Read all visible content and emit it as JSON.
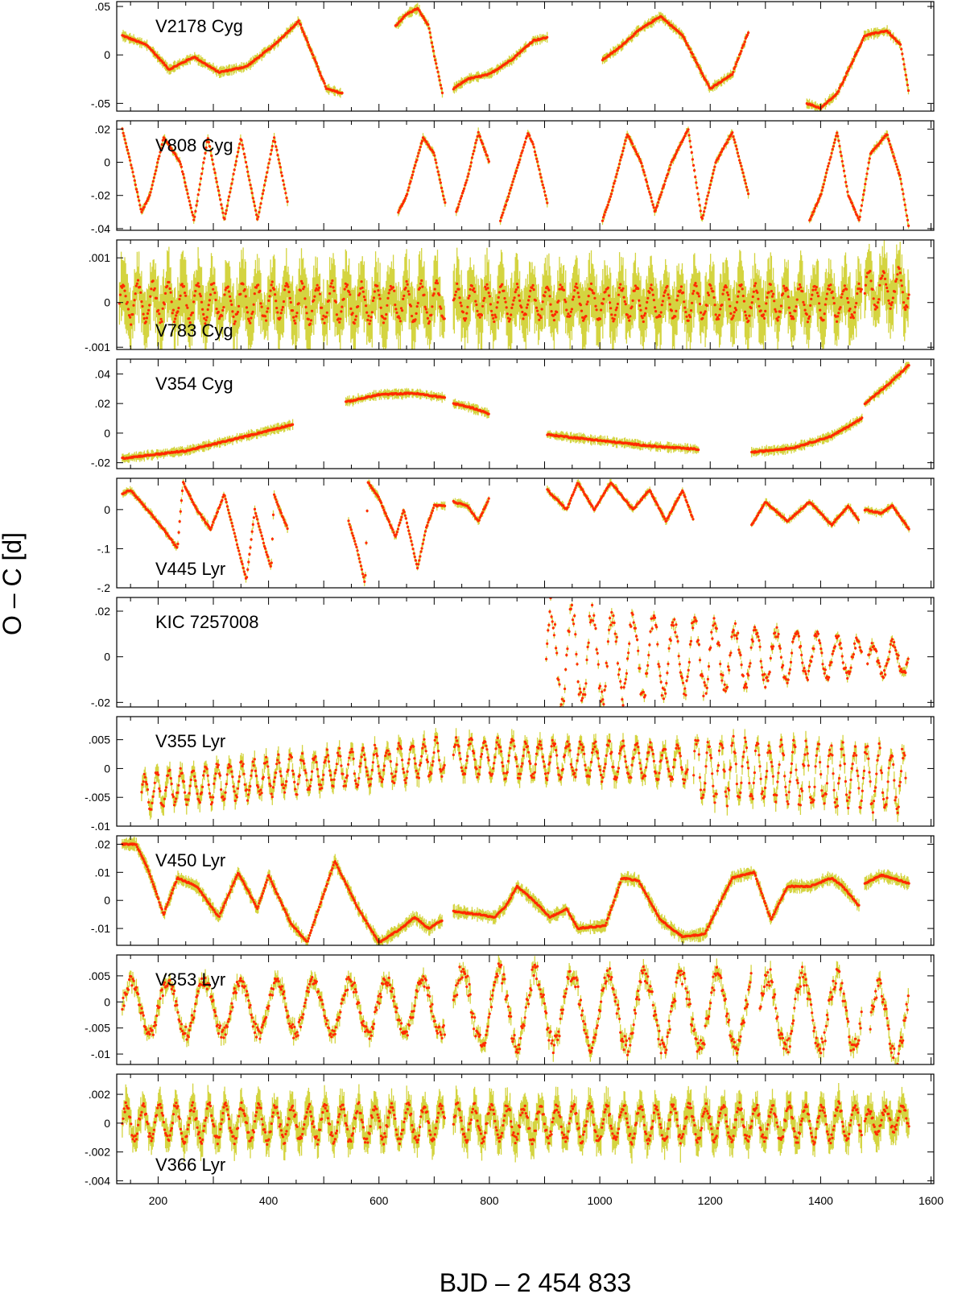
{
  "chart_data": {
    "type": "scatter",
    "ylabel": "O – C [d]",
    "xlabel": "BJD – 2 454 833",
    "xlim": [
      125,
      1605
    ],
    "xticks": [
      "200",
      "400",
      "600",
      "800",
      "1000",
      "1200",
      "1400",
      "1600"
    ],
    "xtick_values": [
      200,
      400,
      600,
      800,
      1000,
      1200,
      1400,
      1600
    ],
    "colors": {
      "points": "#ff2a00",
      "errorbars": "#d4d440",
      "axes": "#000000"
    },
    "panels": [
      {
        "name": "V2178 Cyg",
        "ylim": [
          -0.058,
          0.055
        ],
        "ytick_values": [
          -0.05,
          0,
          0.05
        ],
        "ytick_labels": [
          "-.05",
          "0",
          ".05"
        ],
        "label_pos": "upper-left",
        "err": 0.004,
        "segments": [
          {
            "x": [
              135,
              180,
              220,
              265,
              310,
              360,
              410,
              455,
              480,
              505,
              535
            ],
            "y": [
              0.02,
              0.01,
              -0.015,
              -0.002,
              -0.018,
              -0.012,
              0.01,
              0.035,
              0.0,
              -0.035,
              -0.04
            ]
          },
          {
            "x": [
              630,
              650,
              670,
              690,
              700,
              715
            ],
            "y": [
              0.03,
              0.042,
              0.048,
              0.03,
              0.0,
              -0.04
            ]
          },
          {
            "x": [
              735,
              760,
              800,
              840,
              880,
              905
            ],
            "y": [
              -0.035,
              -0.025,
              -0.02,
              -0.005,
              0.015,
              0.018
            ]
          },
          {
            "x": [
              1005,
              1030,
              1070,
              1110,
              1150,
              1200,
              1240,
              1270
            ],
            "y": [
              -0.005,
              0.005,
              0.025,
              0.04,
              0.02,
              -0.035,
              -0.02,
              0.025
            ]
          },
          {
            "x": [
              1375,
              1400,
              1430,
              1480,
              1520,
              1545,
              1560
            ],
            "y": [
              -0.05,
              -0.055,
              -0.04,
              0.02,
              0.025,
              0.01,
              -0.04
            ]
          }
        ]
      },
      {
        "name": "V808 Cyg",
        "ylim": [
          -0.041,
          0.025
        ],
        "ytick_values": [
          -0.04,
          -0.02,
          0,
          0.02
        ],
        "ytick_labels": [
          "-.04",
          "-.02",
          "0",
          ".02"
        ],
        "label_pos": "upper-left",
        "err": 0.002,
        "segments": [
          {
            "x": [
              135,
              150,
              170,
              185,
              210,
              240,
              265,
              290,
              320,
              350,
              380,
              410,
              435
            ],
            "y": [
              0.02,
              0.0,
              -0.03,
              -0.02,
              0.015,
              0.0,
              -0.035,
              0.015,
              -0.035,
              0.015,
              -0.035,
              0.015,
              -0.025
            ]
          },
          {
            "x": [
              635,
              650,
              680,
              700,
              720
            ],
            "y": [
              -0.03,
              -0.02,
              0.015,
              0.005,
              -0.025
            ]
          },
          {
            "x": [
              740,
              760,
              780,
              800
            ],
            "y": [
              -0.03,
              -0.01,
              0.018,
              0.0
            ]
          },
          {
            "x": [
              820,
              835,
              870,
              880,
              905
            ],
            "y": [
              -0.035,
              -0.02,
              0.018,
              0.01,
              -0.025
            ]
          },
          {
            "x": [
              1005,
              1020,
              1050,
              1075,
              1100,
              1130,
              1160,
              1185,
              1210,
              1240,
              1270
            ],
            "y": [
              -0.035,
              -0.02,
              0.017,
              0.0,
              -0.03,
              0.0,
              0.02,
              -0.035,
              0.0,
              0.018,
              -0.02
            ]
          },
          {
            "x": [
              1380,
              1400,
              1430,
              1450,
              1470,
              1490,
              1520,
              1545,
              1560
            ],
            "y": [
              -0.035,
              -0.02,
              0.018,
              -0.02,
              -0.035,
              0.005,
              0.017,
              -0.01,
              -0.04
            ]
          }
        ]
      },
      {
        "name": "V783 Cyg",
        "ylim": [
          -0.00105,
          0.0014
        ],
        "ytick_values": [
          -0.001,
          0,
          0.001
        ],
        "ytick_labels": [
          "-.001",
          "0",
          ".001"
        ],
        "label_pos": "lower-left",
        "err": 0.00055,
        "segments": [
          {
            "x": [
              130,
              720
            ],
            "y": [
              0.0,
              0.0
            ],
            "osc": {
              "period": 27,
              "amp": 0.0004
            }
          },
          {
            "x": [
              735,
              1475
            ],
            "y": [
              0.0,
              0.0
            ],
            "osc": {
              "period": 27,
              "amp": 0.00035
            }
          },
          {
            "x": [
              1480,
              1560
            ],
            "y": [
              0.0003,
              0.0003
            ],
            "osc": {
              "period": 27,
              "amp": 0.0004
            }
          }
        ]
      },
      {
        "name": "V354 Cyg",
        "ylim": [
          -0.024,
          0.05
        ],
        "ytick_values": [
          -0.02,
          0,
          0.02,
          0.04
        ],
        "ytick_labels": [
          "-.02",
          "0",
          ".02",
          ".04"
        ],
        "label_pos": "upper-left",
        "err": 0.0025,
        "segments": [
          {
            "x": [
              135,
              250,
              350,
              445
            ],
            "y": [
              -0.017,
              -0.012,
              -0.003,
              0.006
            ]
          },
          {
            "x": [
              540,
              600,
              660,
              720
            ],
            "y": [
              0.021,
              0.026,
              0.027,
              0.024
            ]
          },
          {
            "x": [
              735,
              770,
              800
            ],
            "y": [
              0.02,
              0.017,
              0.013
            ]
          },
          {
            "x": [
              905,
              1000,
              1100,
              1180
            ],
            "y": [
              -0.001,
              -0.005,
              -0.009,
              -0.011
            ]
          },
          {
            "x": [
              1275,
              1350,
              1420,
              1475
            ],
            "y": [
              -0.013,
              -0.01,
              -0.002,
              0.01
            ]
          },
          {
            "x": [
              1480,
              1520,
              1560
            ],
            "y": [
              0.02,
              0.032,
              0.046
            ]
          }
        ]
      },
      {
        "name": "V445 Lyr",
        "ylim": [
          -0.2,
          0.08
        ],
        "ytick_values": [
          -0.2,
          -0.1,
          0
        ],
        "ytick_labels": [
          "-.2",
          "-.1",
          "0"
        ],
        "label_pos": "lower-left",
        "err": 0.008,
        "segments": [
          {
            "x": [
              135,
              150,
              180,
              210,
              235,
              245,
              270,
              295,
              320,
              345,
              360,
              375,
              392,
              405,
              410,
              420,
              435
            ],
            "y": [
              0.04,
              0.05,
              0.0,
              -0.05,
              -0.1,
              0.07,
              0.0,
              -0.05,
              0.04,
              -0.1,
              -0.18,
              0.0,
              -0.09,
              -0.15,
              0.04,
              0.0,
              -0.05
            ]
          },
          {
            "x": [
              545,
              560,
              575,
              580,
              600,
              630,
              645,
              670,
              685,
              700,
              720
            ],
            "y": [
              -0.03,
              -0.1,
              -0.19,
              0.07,
              0.03,
              -0.07,
              0.0,
              -0.15,
              -0.05,
              0.01,
              0.01
            ]
          },
          {
            "x": [
              735,
              760,
              780,
              800
            ],
            "y": [
              0.02,
              0.01,
              -0.03,
              0.03
            ]
          },
          {
            "x": [
              905,
              940,
              960,
              990,
              1020,
              1060,
              1090,
              1120,
              1150,
              1170
            ],
            "y": [
              0.05,
              0.0,
              0.07,
              0.0,
              0.07,
              0.0,
              0.05,
              -0.03,
              0.05,
              -0.03
            ]
          },
          {
            "x": [
              1275,
              1300,
              1340,
              1380,
              1420,
              1450,
              1470
            ],
            "y": [
              -0.04,
              0.02,
              -0.03,
              0.02,
              -0.04,
              0.01,
              -0.03
            ]
          },
          {
            "x": [
              1480,
              1510,
              1530,
              1560
            ],
            "y": [
              0.0,
              -0.01,
              0.01,
              -0.05
            ]
          }
        ]
      },
      {
        "name": "KIC 7257008",
        "ylim": [
          -0.022,
          0.026
        ],
        "ytick_values": [
          -0.02,
          0,
          0.02
        ],
        "ytick_labels": [
          "-.02",
          "0",
          ".02"
        ],
        "label_pos": "upper-left",
        "err": 0.0015,
        "segments": [
          {
            "x": [
              903,
              1475
            ],
            "y": [
              0.0,
              0.0
            ],
            "osc": {
              "period": 37,
              "amp": 0.022,
              "decay_to": 0.007
            }
          },
          {
            "x": [
              1485,
              1560
            ],
            "y": [
              -0.002,
              0.0
            ],
            "osc": {
              "period": 37,
              "amp": 0.007
            }
          }
        ]
      },
      {
        "name": "V355 Lyr",
        "ylim": [
          -0.01,
          0.009
        ],
        "ytick_values": [
          -0.01,
          -0.005,
          0,
          0.005
        ],
        "ytick_labels": [
          "-.01",
          "-.005",
          "0",
          ".005"
        ],
        "label_pos": "upper-left",
        "err": 0.0012,
        "segments": [
          {
            "x": [
              170,
              720
            ],
            "y": [
              -0.004,
              0.002
            ],
            "osc": {
              "period": 22,
              "amp": 0.003
            }
          },
          {
            "x": [
              735,
              1160
            ],
            "y": [
              0.002,
              0.001
            ],
            "osc": {
              "period": 25,
              "amp": 0.003
            }
          },
          {
            "x": [
              1170,
              1555
            ],
            "y": [
              0.0,
              -0.002
            ],
            "osc": {
              "period": 22,
              "amp": 0.005
            }
          }
        ]
      },
      {
        "name": "V450 Lyr",
        "ylim": [
          -0.016,
          0.023
        ],
        "ytick_values": [
          -0.01,
          0,
          0.01,
          0.02
        ],
        "ytick_labels": [
          "-.01",
          "0",
          ".01",
          ".02"
        ],
        "label_pos": "upper-left",
        "err": 0.0018,
        "segments": [
          {
            "x": [
              135,
              160,
              180,
              210,
              235,
              270,
              310,
              345,
              380,
              400,
              440,
              470,
              520,
              560,
              600,
              640,
              665,
              690,
              715
            ],
            "y": [
              0.02,
              0.02,
              0.012,
              -0.005,
              0.008,
              0.005,
              -0.006,
              0.01,
              -0.003,
              0.009,
              -0.008,
              -0.015,
              0.014,
              -0.002,
              -0.015,
              -0.01,
              -0.006,
              -0.01,
              -0.007
            ]
          },
          {
            "x": [
              735,
              780,
              810,
              830,
              850,
              880,
              910,
              940,
              960,
              1010,
              1040,
              1070,
              1110,
              1150,
              1190,
              1240,
              1280,
              1310,
              1340,
              1380,
              1420,
              1440,
              1470
            ],
            "y": [
              -0.004,
              -0.005,
              -0.006,
              -0.002,
              0.005,
              0.0,
              -0.006,
              -0.003,
              -0.01,
              -0.009,
              0.008,
              0.007,
              -0.007,
              -0.013,
              -0.012,
              0.008,
              0.01,
              -0.007,
              0.005,
              0.005,
              0.008,
              0.005,
              -0.002
            ]
          },
          {
            "x": [
              1480,
              1510,
              1530,
              1560
            ],
            "y": [
              0.006,
              0.009,
              0.008,
              0.006
            ]
          }
        ]
      },
      {
        "name": "V353 Lyr",
        "ylim": [
          -0.012,
          0.009
        ],
        "ytick_values": [
          -0.01,
          -0.005,
          0,
          0.005
        ],
        "ytick_labels": [
          "-.01",
          "-.005",
          "0",
          ".005"
        ],
        "label_pos": "upper-left",
        "err": 0.0012,
        "segments": [
          {
            "x": [
              135,
              720
            ],
            "y": [
              -0.001,
              -0.001
            ],
            "osc": {
              "period": 66,
              "amp": 0.005
            }
          },
          {
            "x": [
              735,
              1275
            ],
            "y": [
              -0.001,
              -0.002
            ],
            "osc": {
              "period": 66,
              "amp": 0.007
            }
          },
          {
            "x": [
              1290,
              1475
            ],
            "y": [
              -0.002,
              -0.002
            ],
            "osc": {
              "period": 62,
              "amp": 0.007
            }
          },
          {
            "x": [
              1490,
              1560
            ],
            "y": [
              -0.004,
              -0.004
            ],
            "osc": {
              "period": 62,
              "amp": 0.007
            }
          }
        ]
      },
      {
        "name": "V366 Lyr",
        "ylim": [
          -0.0042,
          0.0034
        ],
        "ytick_values": [
          -0.004,
          -0.002,
          0,
          0.002
        ],
        "ytick_labels": [
          "-.004",
          "-.002",
          "0",
          ".002"
        ],
        "label_pos": "lower-left",
        "err": 0.0009,
        "segments": [
          {
            "x": [
              135,
              720
            ],
            "y": [
              0.0,
              0.0
            ],
            "osc": {
              "period": 30,
              "amp": 0.0012
            }
          },
          {
            "x": [
              735,
              1475
            ],
            "y": [
              0.0,
              0.0
            ],
            "osc": {
              "period": 30,
              "amp": 0.0012
            }
          },
          {
            "x": [
              1480,
              1560
            ],
            "y": [
              0.0,
              0.0005
            ],
            "osc": {
              "period": 30,
              "amp": 0.0008
            }
          }
        ]
      }
    ]
  }
}
